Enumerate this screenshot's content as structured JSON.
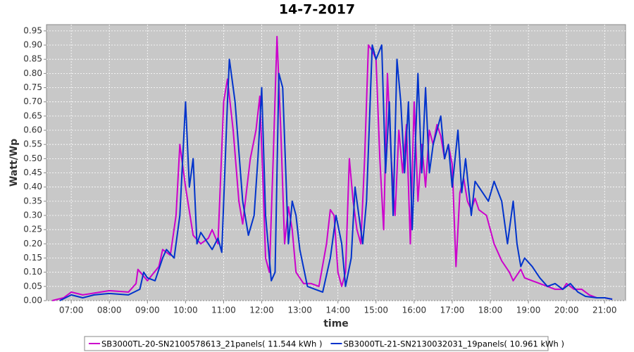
{
  "chart_data": {
    "type": "line",
    "title": "14-7-2017",
    "xlabel": "time",
    "ylabel": "Watt/Wp",
    "xlim": [
      6.35,
      21.55
    ],
    "ylim": [
      0,
      0.972
    ],
    "grid": true,
    "legend": "bottom",
    "xticks": [
      {
        "value": 7,
        "label": "07:00"
      },
      {
        "value": 8,
        "label": "08:00"
      },
      {
        "value": 9,
        "label": "09:00"
      },
      {
        "value": 10,
        "label": "10:00"
      },
      {
        "value": 11,
        "label": "11:00"
      },
      {
        "value": 12,
        "label": "12:00"
      },
      {
        "value": 13,
        "label": "13:00"
      },
      {
        "value": 14,
        "label": "14:00"
      },
      {
        "value": 15,
        "label": "15:00"
      },
      {
        "value": 16,
        "label": "16:00"
      },
      {
        "value": 17,
        "label": "17:00"
      },
      {
        "value": 18,
        "label": "18:00"
      },
      {
        "value": 19,
        "label": "19:00"
      },
      {
        "value": 20,
        "label": "20:00"
      },
      {
        "value": 21,
        "label": "21:00"
      }
    ],
    "yticks": [
      {
        "value": 0,
        "label": "0.00"
      },
      {
        "value": 0.05,
        "label": "0.05"
      },
      {
        "value": 0.1,
        "label": "0.10"
      },
      {
        "value": 0.15,
        "label": "0.15"
      },
      {
        "value": 0.2,
        "label": "0.20"
      },
      {
        "value": 0.25,
        "label": "0.25"
      },
      {
        "value": 0.3,
        "label": "0.30"
      },
      {
        "value": 0.35,
        "label": "0.35"
      },
      {
        "value": 0.4,
        "label": "0.40"
      },
      {
        "value": 0.45,
        "label": "0.45"
      },
      {
        "value": 0.5,
        "label": "0.50"
      },
      {
        "value": 0.55,
        "label": "0.55"
      },
      {
        "value": 0.6,
        "label": "0.60"
      },
      {
        "value": 0.65,
        "label": "0.65"
      },
      {
        "value": 0.7,
        "label": "0.70"
      },
      {
        "value": 0.75,
        "label": "0.75"
      },
      {
        "value": 0.8,
        "label": "0.80"
      },
      {
        "value": 0.85,
        "label": "0.85"
      },
      {
        "value": 0.9,
        "label": "0.90"
      },
      {
        "value": 0.95,
        "label": "0.95"
      }
    ],
    "series": [
      {
        "name": "SB3000TL-20-SN2100578613_21panels( 11.544 kWh )",
        "color": "#cc00cc",
        "x": [
          6.5,
          6.8,
          7.0,
          7.3,
          8.0,
          8.5,
          8.7,
          8.75,
          9.0,
          9.3,
          9.4,
          9.6,
          9.75,
          9.85,
          10.0,
          10.2,
          10.4,
          10.6,
          10.7,
          10.85,
          11.0,
          11.1,
          11.25,
          11.4,
          11.5,
          11.7,
          11.85,
          11.95,
          12.05,
          12.1,
          12.2,
          12.3,
          12.4,
          12.5,
          12.6,
          12.7,
          12.8,
          12.9,
          13.1,
          13.3,
          13.5,
          13.7,
          13.8,
          13.9,
          14.0,
          14.1,
          14.2,
          14.3,
          14.4,
          14.5,
          14.6,
          14.7,
          14.8,
          14.9,
          15.0,
          15.1,
          15.2,
          15.3,
          15.4,
          15.5,
          15.6,
          15.7,
          15.8,
          15.9,
          16.0,
          16.1,
          16.2,
          16.3,
          16.4,
          16.5,
          16.6,
          16.7,
          16.8,
          16.9,
          17.0,
          17.1,
          17.2,
          17.3,
          17.4,
          17.5,
          17.6,
          17.7,
          17.8,
          17.9,
          18.1,
          18.3,
          18.5,
          18.6,
          18.8,
          18.9,
          19.1,
          19.3,
          19.5,
          19.7,
          19.9,
          20.0,
          20.2,
          20.4,
          20.6,
          20.8,
          21.0,
          21.2
        ],
        "values": [
          0.0,
          0.01,
          0.03,
          0.02,
          0.035,
          0.03,
          0.06,
          0.11,
          0.07,
          0.12,
          0.18,
          0.16,
          0.3,
          0.55,
          0.4,
          0.23,
          0.2,
          0.22,
          0.25,
          0.2,
          0.7,
          0.78,
          0.6,
          0.35,
          0.27,
          0.5,
          0.6,
          0.72,
          0.35,
          0.15,
          0.1,
          0.5,
          0.93,
          0.6,
          0.2,
          0.33,
          0.25,
          0.1,
          0.06,
          0.06,
          0.05,
          0.2,
          0.32,
          0.3,
          0.1,
          0.05,
          0.1,
          0.5,
          0.35,
          0.25,
          0.2,
          0.5,
          0.9,
          0.88,
          0.85,
          0.5,
          0.25,
          0.8,
          0.5,
          0.3,
          0.6,
          0.45,
          0.62,
          0.2,
          0.7,
          0.35,
          0.55,
          0.4,
          0.6,
          0.55,
          0.62,
          0.58,
          0.5,
          0.55,
          0.48,
          0.12,
          0.38,
          0.43,
          0.35,
          0.32,
          0.36,
          0.32,
          0.31,
          0.3,
          0.2,
          0.14,
          0.1,
          0.07,
          0.11,
          0.08,
          0.07,
          0.06,
          0.05,
          0.04,
          0.04,
          0.06,
          0.04,
          0.04,
          0.02,
          0.01,
          0.01,
          0.005
        ]
      },
      {
        "name": "SB3000TL-21-SN2130032031_19panels( 10.961 kWh )",
        "color": "#0033cc",
        "x": [
          6.7,
          7.0,
          7.3,
          7.6,
          8.0,
          8.5,
          8.8,
          8.9,
          9.0,
          9.2,
          9.4,
          9.5,
          9.7,
          9.85,
          10.0,
          10.1,
          10.2,
          10.3,
          10.4,
          10.6,
          10.7,
          10.85,
          10.95,
          11.1,
          11.15,
          11.3,
          11.5,
          11.65,
          11.8,
          11.9,
          12.0,
          12.1,
          12.25,
          12.35,
          12.45,
          12.55,
          12.7,
          12.8,
          12.9,
          13.0,
          13.2,
          13.4,
          13.6,
          13.8,
          13.95,
          14.1,
          14.2,
          14.35,
          14.45,
          14.55,
          14.65,
          14.75,
          14.9,
          15.0,
          15.15,
          15.25,
          15.35,
          15.45,
          15.55,
          15.65,
          15.75,
          15.85,
          15.95,
          16.1,
          16.2,
          16.3,
          16.4,
          16.5,
          16.7,
          16.8,
          16.9,
          17.0,
          17.15,
          17.25,
          17.35,
          17.5,
          17.6,
          17.7,
          17.8,
          17.95,
          18.1,
          18.3,
          18.45,
          18.6,
          18.7,
          18.8,
          18.9,
          19.1,
          19.3,
          19.5,
          19.7,
          19.9,
          20.1,
          20.3,
          20.5,
          20.8,
          21.0,
          21.2
        ],
        "values": [
          0.0,
          0.02,
          0.01,
          0.02,
          0.025,
          0.02,
          0.04,
          0.1,
          0.08,
          0.07,
          0.15,
          0.18,
          0.15,
          0.3,
          0.7,
          0.4,
          0.5,
          0.2,
          0.24,
          0.2,
          0.18,
          0.22,
          0.17,
          0.7,
          0.85,
          0.7,
          0.35,
          0.23,
          0.3,
          0.5,
          0.75,
          0.3,
          0.07,
          0.1,
          0.8,
          0.75,
          0.2,
          0.35,
          0.3,
          0.18,
          0.05,
          0.04,
          0.03,
          0.15,
          0.3,
          0.2,
          0.05,
          0.15,
          0.4,
          0.3,
          0.2,
          0.35,
          0.9,
          0.85,
          0.9,
          0.45,
          0.7,
          0.3,
          0.85,
          0.7,
          0.45,
          0.7,
          0.25,
          0.8,
          0.45,
          0.75,
          0.45,
          0.55,
          0.65,
          0.5,
          0.55,
          0.4,
          0.6,
          0.38,
          0.5,
          0.3,
          0.42,
          0.4,
          0.38,
          0.35,
          0.42,
          0.35,
          0.2,
          0.35,
          0.2,
          0.12,
          0.15,
          0.12,
          0.08,
          0.05,
          0.06,
          0.04,
          0.06,
          0.03,
          0.015,
          0.01,
          0.01,
          0.005
        ]
      }
    ]
  }
}
